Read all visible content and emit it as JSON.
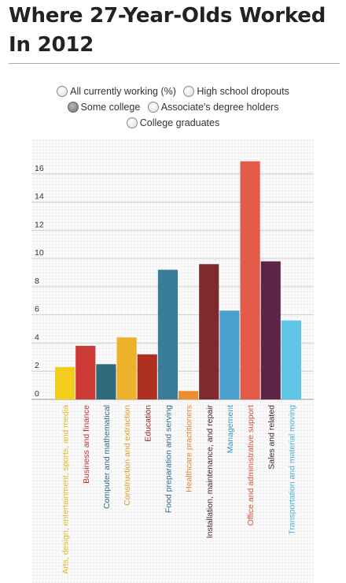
{
  "page": {
    "title": "Where 27-Year-Olds Worked In 2012"
  },
  "controls": {
    "options": [
      {
        "label": "All currently working (%)",
        "selected": false
      },
      {
        "label": "High school dropouts",
        "selected": false
      },
      {
        "label": "Some college",
        "selected": true
      },
      {
        "label": "Associate's degree holders",
        "selected": false
      },
      {
        "label": "College graduates",
        "selected": false
      }
    ]
  },
  "chart_data": {
    "type": "bar",
    "title": "",
    "xlabel": "",
    "ylabel": "",
    "ylim": [
      0,
      18
    ],
    "yticks": [
      0,
      2,
      4,
      6,
      8,
      10,
      12,
      14,
      16
    ],
    "grid": true,
    "categories": [
      "Arts, design, entertainment, sports, and media",
      "Business and finance",
      "Computer and mathematical",
      "Construction and extraction",
      "Education",
      "Food preparation and serving",
      "Healthcare practitioners",
      "Installation, maintenance, and repair",
      "Management",
      "Office and administrative support",
      "Sales and related",
      "Transportation and material moving"
    ],
    "values": [
      2.3,
      3.8,
      2.5,
      4.4,
      3.2,
      9.2,
      0.6,
      9.6,
      6.3,
      16.9,
      9.8,
      5.6
    ],
    "colors": [
      "#f3cd1b",
      "#cc3a35",
      "#2f6b7b",
      "#eeb12b",
      "#ae3023",
      "#397c99",
      "#ec8d2f",
      "#7f2a2d",
      "#4aa0cc",
      "#e45b4a",
      "#5d2648",
      "#5fc6e8"
    ],
    "label_colors": [
      "#e0b81b",
      "#c23030",
      "#2f6b7b",
      "#e49b22",
      "#8a2a1e",
      "#2f6b8f",
      "#e8842a",
      "#4a1b1e",
      "#3d92c3",
      "#d94c3d",
      "#3a1f33",
      "#44b5e3"
    ]
  }
}
